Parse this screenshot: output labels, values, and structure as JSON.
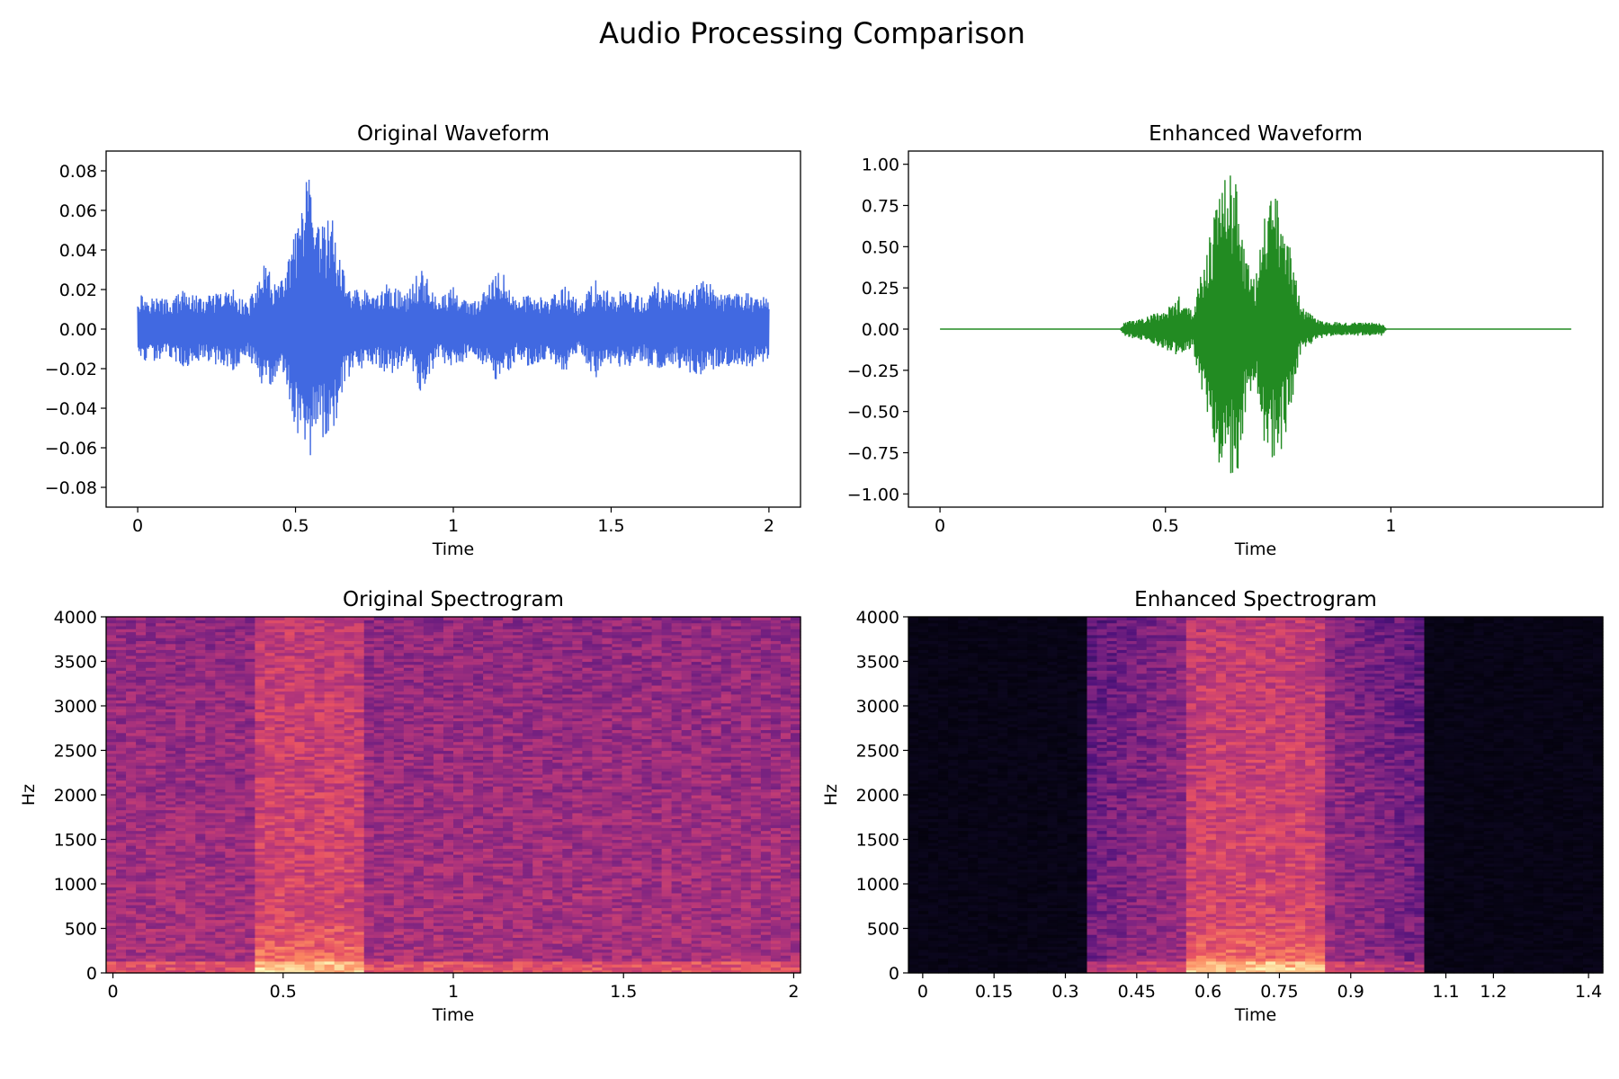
{
  "figure_title": "Audio Processing Comparison",
  "chart_data": [
    {
      "id": "orig_wave",
      "type": "line",
      "title": "Original Waveform",
      "xlabel": "Time",
      "ylabel": "",
      "color": "#4169e1",
      "xlim": [
        -0.1,
        2.1
      ],
      "ylim": [
        -0.09,
        0.09
      ],
      "x_ticks": [
        0,
        0.5,
        1,
        1.5,
        2
      ],
      "x_tick_labels": [
        "0",
        "0.5",
        "1",
        "1.5",
        "2"
      ],
      "y_ticks": [
        -0.08,
        -0.06,
        -0.04,
        -0.02,
        0,
        0.02,
        0.04,
        0.06,
        0.08
      ],
      "y_tick_labels": [
        "−0.08",
        "−0.06",
        "−0.04",
        "−0.02",
        "0.00",
        "0.02",
        "0.04",
        "0.06",
        "0.08"
      ],
      "series": [
        {
          "x": [
            0,
            0.05,
            0.1,
            0.15,
            0.2,
            0.25,
            0.3,
            0.35,
            0.4,
            0.45,
            0.5,
            0.52,
            0.54,
            0.56,
            0.6,
            0.62,
            0.64,
            0.68,
            0.72,
            0.75,
            0.8,
            0.85,
            0.9,
            0.95,
            1.0,
            1.05,
            1.1,
            1.15,
            1.2,
            1.25,
            1.3,
            1.35,
            1.4,
            1.45,
            1.5,
            1.55,
            1.6,
            1.65,
            1.7,
            1.75,
            1.8,
            1.85,
            1.9,
            1.95,
            2.0
          ],
          "amplitude": [
            0.019,
            0.017,
            0.015,
            0.02,
            0.016,
            0.018,
            0.021,
            0.013,
            0.033,
            0.022,
            0.05,
            0.062,
            0.081,
            0.052,
            0.056,
            0.059,
            0.035,
            0.021,
            0.02,
            0.018,
            0.024,
            0.017,
            0.033,
            0.015,
            0.022,
            0.013,
            0.019,
            0.031,
            0.015,
            0.02,
            0.014,
            0.023,
            0.013,
            0.025,
            0.018,
            0.02,
            0.016,
            0.024,
            0.019,
            0.022,
            0.025,
            0.018,
            0.02,
            0.019,
            0.017
          ]
        }
      ]
    },
    {
      "id": "enh_wave",
      "type": "line",
      "title": "Enhanced Waveform",
      "xlabel": "Time",
      "ylabel": "",
      "color": "#228b22",
      "xlim": [
        -0.07,
        1.47
      ],
      "ylim": [
        -1.08,
        1.08
      ],
      "x_ticks": [
        0,
        0.5,
        1
      ],
      "x_tick_labels": [
        "0",
        "0.5",
        "1"
      ],
      "y_ticks": [
        -1,
        -0.75,
        -0.5,
        -0.25,
        0,
        0.25,
        0.5,
        0.75,
        1
      ],
      "y_tick_labels": [
        "−1.00",
        "−0.75",
        "−0.50",
        "−0.25",
        "0.00",
        "0.25",
        "0.50",
        "0.75",
        "1.00"
      ],
      "series": [
        {
          "x": [
            0,
            0.4,
            0.41,
            0.45,
            0.5,
            0.53,
            0.56,
            0.6,
            0.62,
            0.64,
            0.66,
            0.68,
            0.7,
            0.72,
            0.74,
            0.76,
            0.78,
            0.8,
            0.82,
            0.85,
            0.9,
            0.95,
            0.98,
            0.99,
            1.4
          ],
          "amplitude": [
            0,
            0,
            0.05,
            0.07,
            0.12,
            0.2,
            0.12,
            0.6,
            0.85,
            0.97,
            0.9,
            0.45,
            0.3,
            0.7,
            0.82,
            0.72,
            0.45,
            0.15,
            0.1,
            0.05,
            0.04,
            0.04,
            0.04,
            0,
            0
          ]
        }
      ]
    },
    {
      "id": "orig_spec",
      "type": "heatmap",
      "title": "Original Spectrogram",
      "xlabel": "Time",
      "ylabel": "Hz",
      "colormap": "magma",
      "xlim": [
        -0.02,
        2.02
      ],
      "ylim": [
        0,
        4000
      ],
      "x_ticks": [
        0,
        0.5,
        1,
        1.5,
        2
      ],
      "x_tick_labels": [
        "0",
        "0.5",
        "1",
        "1.5",
        "2"
      ],
      "y_ticks": [
        0,
        500,
        1000,
        1500,
        2000,
        2500,
        3000,
        3500,
        4000
      ],
      "y_tick_labels": [
        "0",
        "500",
        "1000",
        "1500",
        "2000",
        "2500",
        "3000",
        "3500",
        "4000"
      ],
      "active_range": [
        -0.02,
        2.02
      ],
      "speech_range": [
        0.42,
        0.74
      ]
    },
    {
      "id": "enh_spec",
      "type": "heatmap",
      "title": "Enhanced Spectrogram",
      "xlabel": "Time",
      "ylabel": "Hz",
      "colormap": "magma",
      "xlim": [
        -0.03,
        1.43
      ],
      "ylim": [
        0,
        4000
      ],
      "x_ticks": [
        0,
        0.15,
        0.3,
        0.45,
        0.6,
        0.75,
        0.9,
        1.1,
        1.2,
        1.4
      ],
      "x_tick_labels": [
        "0",
        "0.15",
        "0.3",
        "0.45",
        "0.6",
        "0.75",
        "0.9",
        "1.1",
        "1.2",
        "1.4"
      ],
      "y_ticks": [
        0,
        500,
        1000,
        1500,
        2000,
        2500,
        3000,
        3500,
        4000
      ],
      "y_tick_labels": [
        "0",
        "500",
        "1000",
        "1500",
        "2000",
        "2500",
        "3000",
        "3500",
        "4000"
      ],
      "active_range": [
        0.35,
        1.05
      ],
      "speech_range": [
        0.55,
        0.85
      ]
    }
  ]
}
